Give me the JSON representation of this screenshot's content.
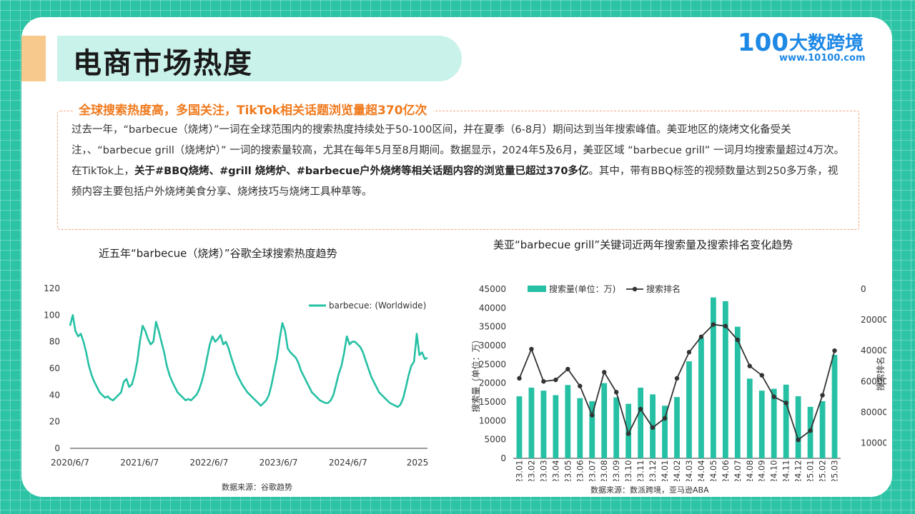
{
  "page": {
    "title": "电商市场热度",
    "logo": {
      "mark": "100",
      "name": "大数跨境",
      "url": "www.10100.com"
    }
  },
  "summary": {
    "heading": "全球搜索热度高，多国关注，TikTok相关话题浏览量超370亿次",
    "p1": "过去一年，“barbecue（烧烤）”一词在全球范围内的搜索热度持续处于50-100区间，并在夏季（6-8月）期间达到当年搜索峰值。美亚地区的烧烤文化备受关注，、“barbecue grill（烧烤炉）” 一词的搜索量较高，尤其在每年5月至8月期间。数据显示，2024年5及6月，美亚区域 “barbecue grill” 一词月均搜索量超过4万次。",
    "p2_prefix": "在TikTok上，",
    "p2_bold": "关于#BBQ烧烤、#grill 烧烤炉、#barbecue户外烧烤等相关话题内容的浏览量已超过370多亿",
    "p2_suffix": "。其中，带有BBQ标签的视频数量达到250多万条，视频内容主要包括户外烧烤美食分享、烧烤技巧与烧烤工具种草等。"
  },
  "colors": {
    "teal": "#26c0a4",
    "orange": "#f07a1e",
    "line": "#333333"
  },
  "chart_data": [
    {
      "type": "line",
      "title": "近五年“barbecue（烧烤）”谷歌全球搜索热度趋势",
      "source": "数据来源：谷歌趋势",
      "legend": "barbecue: (Worldwide)",
      "legend_position": "top-right",
      "ylim": [
        0,
        120
      ],
      "yticks": [
        0,
        20,
        40,
        60,
        80,
        100,
        120
      ],
      "xtick_labels": [
        "2020/6/7",
        "2021/6/7",
        "2022/6/7",
        "2023/6/7",
        "2024/6/7",
        "2025"
      ],
      "series": [
        {
          "values": [
            92,
            100,
            88,
            84,
            86,
            80,
            72,
            62,
            55,
            50,
            46,
            42,
            40,
            38,
            39,
            37,
            36,
            38,
            40,
            42,
            50,
            52,
            46,
            48,
            55,
            65,
            80,
            92,
            88,
            82,
            78,
            80,
            95,
            88,
            80,
            72,
            62,
            55,
            50,
            46,
            42,
            40,
            38,
            36,
            37,
            36,
            38,
            40,
            44,
            50,
            58,
            68,
            78,
            84,
            80,
            82,
            85,
            78,
            80,
            75,
            68,
            62,
            56,
            52,
            48,
            45,
            42,
            40,
            38,
            36,
            34,
            32,
            34,
            36,
            40,
            48,
            58,
            68,
            82,
            94,
            88,
            75,
            72,
            70,
            68,
            64,
            58,
            54,
            50,
            46,
            42,
            40,
            38,
            36,
            35,
            34,
            34,
            36,
            40,
            48,
            56,
            62,
            72,
            84,
            78,
            80,
            80,
            78,
            76,
            72,
            66,
            60,
            54,
            50,
            46,
            42,
            40,
            38,
            36,
            34,
            33,
            32,
            31,
            33,
            38,
            46,
            55,
            62,
            65,
            86,
            70,
            72,
            67,
            68
          ]
        }
      ],
      "grid": false
    },
    {
      "type": "bar+line",
      "title": "美亚“barbecue grill”关键词近两年搜索量及搜索排名变化趋势",
      "source": "数据来源：数派跨境，亚马逊ABA",
      "legend_position": "top",
      "categories": [
        "2023.01",
        "2023.02",
        "2023.03",
        "2023.04",
        "2023.05",
        "2023.06",
        "2023.07",
        "2023.08",
        "2023.09",
        "2023.10",
        "2023.11",
        "2023.12",
        "2024.01",
        "2024.02",
        "2024.03",
        "2024.04",
        "2024.05",
        "2024.06",
        "2024.07",
        "2024.08",
        "2024.09",
        "2024.10",
        "2024.11",
        "2024.12",
        "2025.01",
        "2025.02",
        "2025.03"
      ],
      "series": [
        {
          "name": "搜索量(单位：万)",
          "type": "bar",
          "axis": "left",
          "values": [
            16500,
            18800,
            18000,
            16800,
            19500,
            16000,
            15200,
            20000,
            16200,
            14500,
            18800,
            17000,
            14000,
            16300,
            25800,
            32000,
            42800,
            41800,
            35000,
            21200,
            18000,
            18500,
            19600,
            16500,
            13700,
            15200,
            27500
          ]
        },
        {
          "name": "搜索排名",
          "type": "line",
          "axis": "right",
          "values": [
            58000,
            39000,
            60000,
            59000,
            52000,
            63000,
            82000,
            54000,
            67000,
            94000,
            78000,
            90000,
            84000,
            58000,
            41000,
            31000,
            23000,
            24000,
            33000,
            50000,
            56000,
            70000,
            74000,
            98000,
            92000,
            69000,
            40000
          ]
        }
      ],
      "ylabel_left": "搜索量（单位：万）",
      "ylabel_right": "搜索排名",
      "ylim_left": [
        0,
        45000
      ],
      "yticks_left": [
        0,
        5000,
        10000,
        15000,
        20000,
        25000,
        30000,
        35000,
        40000,
        45000
      ],
      "ylim_right_inverted": [
        0,
        110000
      ],
      "yticks_right": [
        0,
        20000,
        40000,
        60000,
        80000,
        100000
      ],
      "grid": false
    }
  ]
}
